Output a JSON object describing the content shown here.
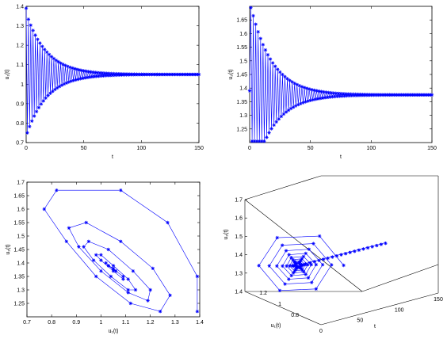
{
  "style": {
    "series_color": "#0000ff",
    "axis_color": "#000000",
    "background": "#ffffff",
    "marker": "asterisk"
  },
  "chart_data": [
    {
      "type": "line",
      "description_id": "top-left",
      "xlabel": "t",
      "ylabel": "u₁(t)",
      "xlim": [
        0,
        150
      ],
      "ylim": [
        0.7,
        1.4
      ],
      "xticks": [
        0,
        50,
        100,
        150
      ],
      "xtick_labels": [
        "0",
        "50",
        "100",
        "150"
      ],
      "yticks": [
        0.7,
        0.8,
        0.9,
        1.0,
        1.1,
        1.2,
        1.3,
        1.4
      ],
      "ytick_labels": [
        "0.7",
        "0.8",
        "0.9",
        "1",
        "1.1",
        "1.2",
        "1.3",
        "1.4"
      ],
      "grid": false,
      "series": [
        {
          "equilibrium": 1.05,
          "initial": 1.39,
          "first_swing": 0.75,
          "decay_per_step": 0.945,
          "step": 1,
          "t_end": 150
        }
      ]
    },
    {
      "type": "line",
      "description_id": "top-right",
      "xlabel": "t",
      "ylabel": "u₂(t)",
      "xlim": [
        0,
        150
      ],
      "ylim": [
        1.2,
        1.7
      ],
      "xticks": [
        0,
        50,
        100,
        150
      ],
      "xtick_labels": [
        "0",
        "50",
        "100",
        "150"
      ],
      "yticks": [
        1.25,
        1.3,
        1.35,
        1.4,
        1.45,
        1.5,
        1.55,
        1.6,
        1.65
      ],
      "ytick_labels": [
        "1.25",
        "1.3",
        "1.35",
        "1.4",
        "1.45",
        "1.5",
        "1.55",
        "1.6",
        "1.65"
      ],
      "grid": false,
      "series": [
        {
          "equilibrium": 1.375,
          "initial": 1.39,
          "first_swing": 1.7,
          "decay_per_step": 0.945,
          "step": 1,
          "t_end": 150
        }
      ]
    },
    {
      "type": "scatter",
      "description_id": "bottom-left-phase",
      "xlabel": "u₁(t)",
      "ylabel": "u₂(t)",
      "xlim": [
        0.7,
        1.4
      ],
      "ylim": [
        1.2,
        1.7
      ],
      "xticks": [
        0.7,
        0.8,
        0.9,
        1.0,
        1.1,
        1.2,
        1.3,
        1.4
      ],
      "xtick_labels": [
        "0.7",
        "0.8",
        "0.9",
        "1",
        "1.1",
        "1.2",
        "1.3",
        "1.4"
      ],
      "yticks": [
        1.25,
        1.3,
        1.35,
        1.4,
        1.45,
        1.5,
        1.55,
        1.6,
        1.65,
        1.7
      ],
      "ytick_labels": [
        "1.25",
        "1.3",
        "1.35",
        "1.4",
        "1.45",
        "1.5",
        "1.55",
        "1.6",
        "1.65",
        "1.7"
      ],
      "grid": false,
      "series": [
        {
          "x": [
            1.39,
            1.39,
            1.27,
            1.08,
            0.82,
            0.77,
            0.86,
            0.98,
            1.12,
            1.24,
            1.28,
            1.21,
            1.08,
            0.94,
            0.87,
            0.91,
            1.0,
            1.11,
            1.19,
            1.2,
            1.13,
            1.03,
            0.95,
            0.93,
            0.97,
            1.04,
            1.11,
            1.14,
            1.11,
            1.05,
            1.0,
            0.98,
            1.0,
            1.05,
            1.09,
            1.09,
            1.06,
            1.03,
            1.02,
            1.03,
            1.05,
            1.06,
            1.05
          ],
          "y": [
            1.22,
            1.35,
            1.55,
            1.67,
            1.67,
            1.6,
            1.48,
            1.35,
            1.25,
            1.22,
            1.28,
            1.38,
            1.48,
            1.55,
            1.53,
            1.46,
            1.37,
            1.29,
            1.26,
            1.3,
            1.37,
            1.45,
            1.48,
            1.46,
            1.41,
            1.35,
            1.3,
            1.3,
            1.34,
            1.39,
            1.43,
            1.43,
            1.41,
            1.37,
            1.34,
            1.35,
            1.37,
            1.39,
            1.4,
            1.39,
            1.38,
            1.37,
            1.375
          ]
        }
      ]
    },
    {
      "type": "line",
      "description_id": "bottom-right-3d",
      "xlabel": "t",
      "ylabel": "u₁(t)",
      "zlabel": "u₂(t)",
      "xlim": [
        0,
        150
      ],
      "ylim": [
        0.7,
        1.4
      ],
      "zlim": [
        1.2,
        1.7
      ],
      "t_ticks": [
        0,
        50,
        100,
        150
      ],
      "t_tick_labels": [
        "0",
        "50",
        "100",
        "150"
      ],
      "u1_ticks": [
        0.8,
        1.0,
        1.2
      ],
      "u1_tick_labels": [
        "0.8",
        "1",
        "1.2"
      ],
      "u2_ticks": [
        1.3,
        1.4,
        1.5,
        1.6,
        1.7
      ],
      "u2_tick_labels": [
        "1.3",
        "1.4",
        "1.5",
        "1.6",
        "1.7"
      ],
      "extra_tick_labels": [
        "1.4"
      ],
      "grid": false
    }
  ]
}
